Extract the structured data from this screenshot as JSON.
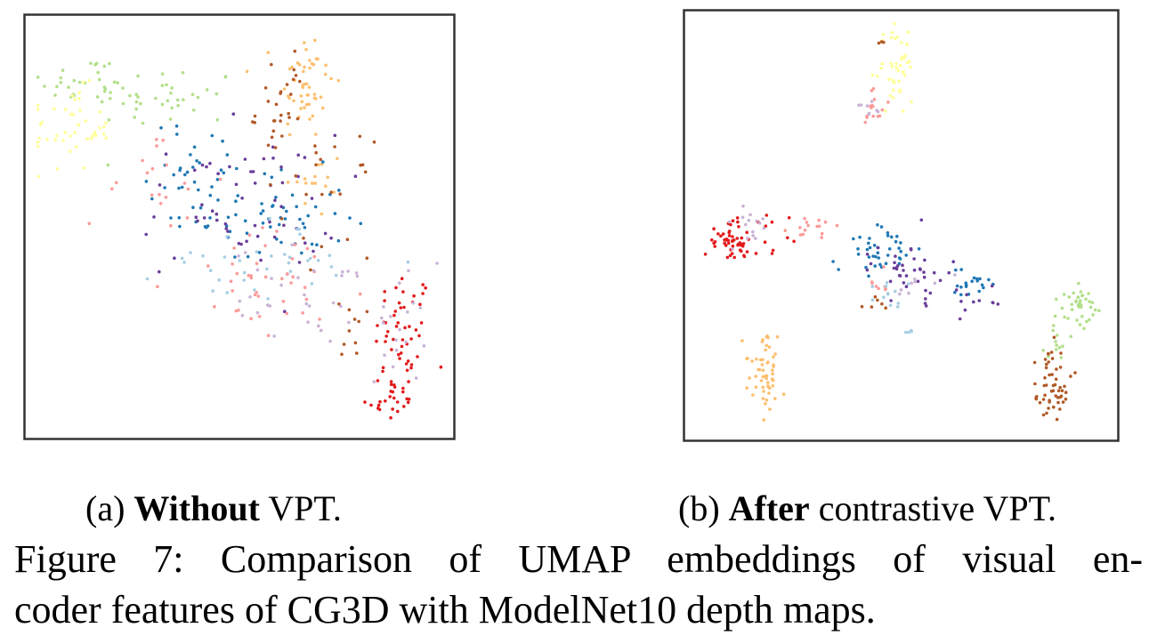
{
  "chart_data": [
    {
      "type": "scatter",
      "subcaption": {
        "label": "(a)",
        "bold": "Without",
        "rest": "VPT."
      },
      "xlim": [
        0,
        100
      ],
      "ylim": [
        0,
        100
      ],
      "grid": false,
      "ticks": false,
      "point_radius": 1.8,
      "series": [
        {
          "color": "#e31a1c",
          "clusters": [
            {
              "cx": 90,
              "cy": 22,
              "sx": 3.5,
              "sy": 9,
              "n": 55
            },
            {
              "cx": 86,
              "cy": 8,
              "sx": 3,
              "sy": 3,
              "n": 20
            }
          ]
        },
        {
          "color": "#fdbf6f",
          "clusters": [
            {
              "cx": 66,
              "cy": 85,
              "sx": 3.5,
              "sy": 7,
              "n": 50
            },
            {
              "cx": 68,
              "cy": 60,
              "sx": 4,
              "sy": 5,
              "n": 15
            }
          ]
        },
        {
          "color": "#b2df8a",
          "clusters": [
            {
              "cx": 12,
              "cy": 86,
              "sx": 6,
              "sy": 3,
              "n": 25
            },
            {
              "cx": 32,
              "cy": 82,
              "sx": 9,
              "sy": 4,
              "n": 40
            }
          ]
        },
        {
          "color": "#ffff99",
          "clusters": [
            {
              "cx": 9,
              "cy": 74,
              "sx": 5,
              "sy": 5,
              "n": 45
            }
          ]
        },
        {
          "color": "#1f78b4",
          "clusters": [
            {
              "cx": 58,
              "cy": 52,
              "sx": 9,
              "sy": 6,
              "n": 55
            },
            {
              "cx": 40,
              "cy": 64,
              "sx": 6,
              "sy": 6,
              "n": 35
            }
          ]
        },
        {
          "color": "#6a3d9a",
          "clusters": [
            {
              "cx": 50,
              "cy": 55,
              "sx": 12,
              "sy": 9,
              "n": 60
            }
          ]
        },
        {
          "color": "#b15928",
          "clusters": [
            {
              "cx": 60,
              "cy": 79,
              "sx": 3,
              "sy": 8,
              "n": 30
            },
            {
              "cx": 72,
              "cy": 57,
              "sx": 5,
              "sy": 7,
              "n": 20
            },
            {
              "cx": 78,
              "cy": 25,
              "sx": 3,
              "sy": 4,
              "n": 10
            }
          ]
        },
        {
          "color": "#fb9a99",
          "clusters": [
            {
              "cx": 60,
              "cy": 35,
              "sx": 11,
              "sy": 7,
              "n": 40
            },
            {
              "cx": 30,
              "cy": 60,
              "sx": 8,
              "sy": 9,
              "n": 20
            }
          ]
        },
        {
          "color": "#cab2d6",
          "clusters": [
            {
              "cx": 68,
              "cy": 33,
              "sx": 10,
              "sy": 6,
              "n": 35
            },
            {
              "cx": 89,
              "cy": 25,
              "sx": 3,
              "sy": 7,
              "n": 15
            }
          ]
        },
        {
          "color": "#a6cee3",
          "clusters": [
            {
              "cx": 55,
              "cy": 42,
              "sx": 12,
              "sy": 5,
              "n": 35
            }
          ]
        }
      ]
    },
    {
      "type": "scatter",
      "subcaption": {
        "label": "(b)",
        "bold": "After",
        "rest": "contrastive VPT."
      },
      "xlim": [
        0,
        100
      ],
      "ylim": [
        0,
        100
      ],
      "grid": false,
      "ticks": false,
      "point_radius": 1.8,
      "series": [
        {
          "color": "#e31a1c",
          "clusters": [
            {
              "cx": 9,
              "cy": 46,
              "sx": 3,
              "sy": 2.5,
              "n": 50
            },
            {
              "cx": 17,
              "cy": 48,
              "sx": 4,
              "sy": 3,
              "n": 12
            }
          ]
        },
        {
          "color": "#ffff99",
          "clusters": [
            {
              "cx": 49,
              "cy": 88,
              "sx": 2.5,
              "sy": 5,
              "n": 45
            }
          ]
        },
        {
          "color": "#b2df8a",
          "clusters": [
            {
              "cx": 93,
              "cy": 31,
              "sx": 2.5,
              "sy": 2.5,
              "n": 35
            },
            {
              "cx": 88,
              "cy": 22,
              "sx": 2,
              "sy": 4,
              "n": 15
            }
          ]
        },
        {
          "color": "#b15928",
          "clusters": [
            {
              "cx": 86,
              "cy": 9,
              "sx": 3,
              "sy": 2.5,
              "n": 40
            },
            {
              "cx": 87,
              "cy": 17,
              "sx": 1.5,
              "sy": 2.5,
              "n": 12
            },
            {
              "cx": 44,
              "cy": 31,
              "sx": 1.5,
              "sy": 1,
              "n": 6
            },
            {
              "cx": 45,
              "cy": 95,
              "sx": 1,
              "sy": 1,
              "n": 3
            }
          ]
        },
        {
          "color": "#fdbf6f",
          "clusters": [
            {
              "cx": 17,
              "cy": 14,
              "sx": 2.5,
              "sy": 4.5,
              "n": 55
            }
          ]
        },
        {
          "color": "#1f78b4",
          "clusters": [
            {
              "cx": 44,
              "cy": 44,
              "sx": 4,
              "sy": 3,
              "n": 40
            },
            {
              "cx": 67,
              "cy": 36,
              "sx": 3,
              "sy": 1.8,
              "n": 20
            }
          ]
        },
        {
          "color": "#6a3d9a",
          "clusters": [
            {
              "cx": 52,
              "cy": 39,
              "sx": 4.5,
              "sy": 3.5,
              "n": 40
            },
            {
              "cx": 70,
              "cy": 33,
              "sx": 4,
              "sy": 2,
              "n": 10
            }
          ]
        },
        {
          "color": "#fb9a99",
          "clusters": [
            {
              "cx": 28,
              "cy": 49,
              "sx": 2.5,
              "sy": 1.5,
              "n": 15
            },
            {
              "cx": 44,
              "cy": 79,
              "sx": 1.5,
              "sy": 4,
              "n": 15
            },
            {
              "cx": 45,
              "cy": 35,
              "sx": 1.5,
              "sy": 2,
              "n": 8
            }
          ]
        },
        {
          "color": "#cab2d6",
          "clusters": [
            {
              "cx": 13,
              "cy": 50,
              "sx": 3,
              "sy": 2,
              "n": 15
            },
            {
              "cx": 43,
              "cy": 78,
              "sx": 2,
              "sy": 2,
              "n": 8
            },
            {
              "cx": 55,
              "cy": 35,
              "sx": 3,
              "sy": 2,
              "n": 8
            }
          ]
        },
        {
          "color": "#a6cee3",
          "clusters": [
            {
              "cx": 47,
              "cy": 33,
              "sx": 2,
              "sy": 2.5,
              "n": 12
            },
            {
              "cx": 52,
              "cy": 24,
              "sx": 0.6,
              "sy": 0.6,
              "n": 4
            }
          ]
        }
      ]
    }
  ],
  "caption": {
    "line1": "Figure 7: Comparison of UMAP embeddings of visual en-",
    "line2": "coder features of CG3D with ModelNet10 depth maps."
  }
}
